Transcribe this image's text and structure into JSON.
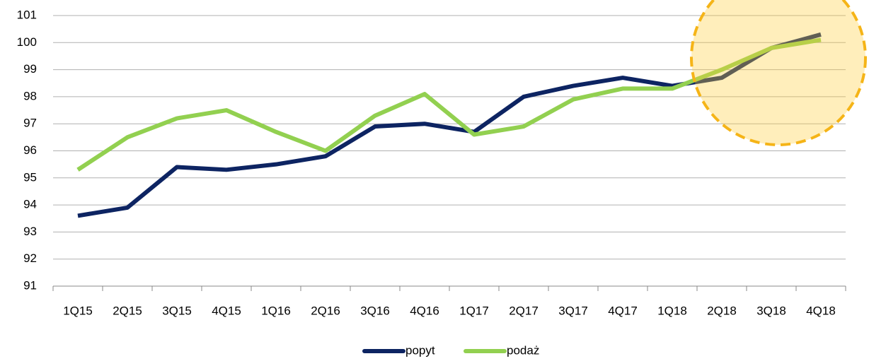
{
  "chart_data": {
    "type": "line",
    "categories": [
      "1Q15",
      "2Q15",
      "3Q15",
      "4Q15",
      "1Q16",
      "2Q16",
      "3Q16",
      "4Q16",
      "1Q17",
      "2Q17",
      "3Q17",
      "4Q17",
      "1Q18",
      "2Q18",
      "3Q18",
      "4Q18"
    ],
    "series": [
      {
        "name": "popyt",
        "color": "#0d2462",
        "values": [
          93.6,
          93.9,
          95.4,
          95.3,
          95.5,
          95.8,
          96.9,
          97.0,
          96.7,
          98.0,
          98.4,
          98.7,
          98.4,
          98.7,
          99.8,
          100.3
        ]
      },
      {
        "name": "podaż",
        "color": "#92d050",
        "values": [
          95.3,
          96.5,
          97.2,
          97.5,
          96.7,
          96.0,
          97.3,
          98.1,
          96.6,
          96.9,
          97.9,
          98.3,
          98.3,
          99.0,
          99.8,
          100.1
        ]
      }
    ],
    "ylim": [
      91,
      101
    ],
    "yticks": [
      91,
      92,
      93,
      94,
      95,
      96,
      97,
      98,
      99,
      100,
      101
    ],
    "grid": true,
    "legend": "bottom"
  }
}
